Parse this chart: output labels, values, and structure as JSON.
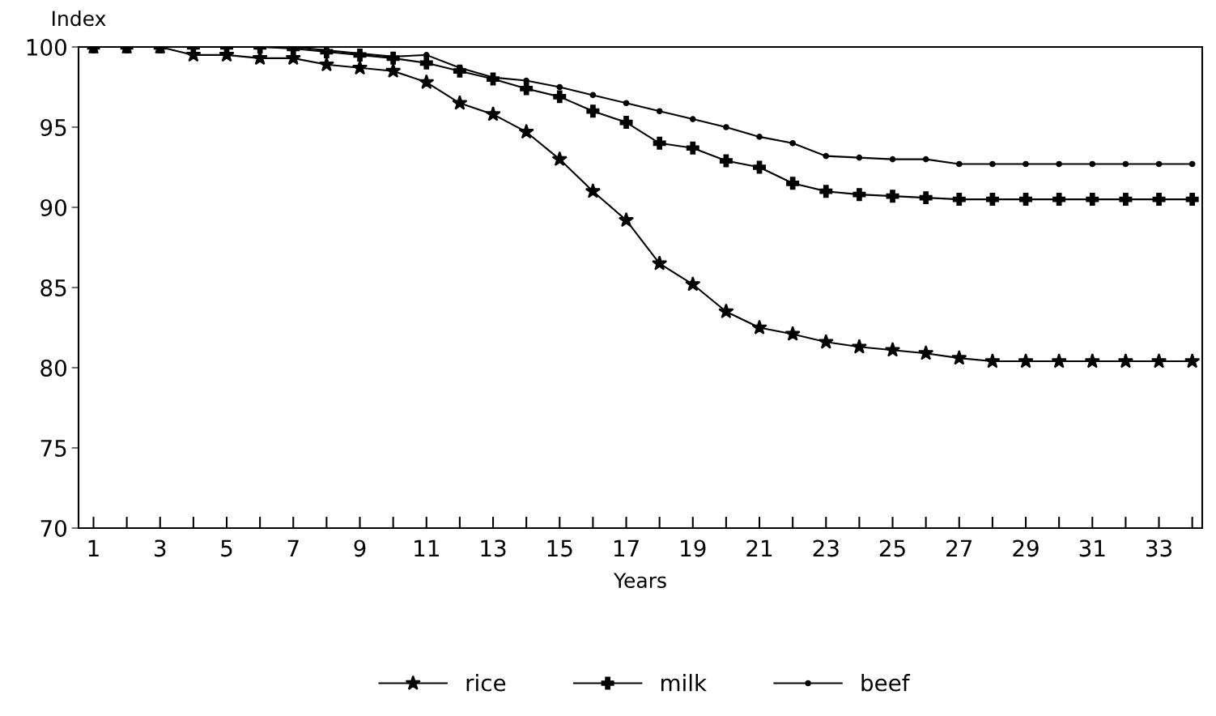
{
  "chart_data": {
    "type": "line",
    "ylabel": "Index",
    "xlabel": "Years",
    "x": [
      1,
      2,
      3,
      4,
      5,
      6,
      7,
      8,
      9,
      10,
      11,
      12,
      13,
      14,
      15,
      16,
      17,
      18,
      19,
      20,
      21,
      22,
      23,
      24,
      25,
      26,
      27,
      28,
      29,
      30,
      31,
      32,
      33,
      34
    ],
    "series": [
      {
        "name": "rice",
        "color": "#000000",
        "marker": "star",
        "values": [
          100,
          100,
          100,
          99.5,
          99.5,
          99.3,
          99.3,
          98.9,
          98.7,
          98.5,
          97.8,
          96.5,
          95.8,
          94.7,
          93,
          91,
          89.2,
          86.5,
          85.2,
          83.5,
          82.5,
          82.1,
          81.6,
          81.3,
          81.1,
          80.9,
          80.6,
          80.4,
          80.4,
          80.4,
          80.4,
          80.4,
          80.4,
          80.4
        ]
      },
      {
        "name": "milk",
        "color": "#000000",
        "marker": "cross",
        "values": [
          100,
          100,
          100,
          100,
          100,
          100,
          99.9,
          99.7,
          99.5,
          99.3,
          99,
          98.5,
          98,
          97.4,
          96.9,
          96,
          95.3,
          94,
          93.7,
          92.9,
          92.5,
          91.5,
          91,
          90.8,
          90.7,
          90.6,
          90.5,
          90.5,
          90.5,
          90.5,
          90.5,
          90.5,
          90.5,
          90.5
        ]
      },
      {
        "name": "beef",
        "color": "#000000",
        "marker": "circle",
        "values": [
          100,
          100,
          100,
          100,
          100,
          100,
          100,
          99.8,
          99.6,
          99.4,
          99.5,
          98.7,
          98.1,
          97.9,
          97.5,
          97,
          96.5,
          96,
          95.5,
          95,
          94.4,
          94,
          93.2,
          93.1,
          93,
          93,
          92.7,
          92.7,
          92.7,
          92.7,
          92.7,
          92.7,
          92.7,
          92.7
        ]
      }
    ],
    "xlim": [
      0.55,
      34.3
    ],
    "ylim": [
      70,
      100
    ],
    "yticks": [
      70,
      75,
      80,
      85,
      90,
      95,
      100
    ],
    "xticks": [
      1,
      {
        "value": 2,
        "label": null
      },
      3,
      {
        "value": 4,
        "label": null
      },
      5,
      {
        "value": 6,
        "label": null
      },
      7,
      {
        "value": 8,
        "label": null
      },
      9,
      {
        "value": 10,
        "label": null
      },
      11,
      {
        "value": 12,
        "label": null
      },
      13,
      {
        "value": 14,
        "label": null
      },
      15,
      {
        "value": 16,
        "label": null
      },
      17,
      {
        "value": 18,
        "label": null
      },
      19,
      {
        "value": 20,
        "label": null
      },
      21,
      {
        "value": 22,
        "label": null
      },
      23,
      {
        "value": 24,
        "label": null
      },
      25,
      {
        "value": 26,
        "label": null
      },
      27,
      {
        "value": 28,
        "label": null
      },
      29,
      {
        "value": 30,
        "label": null
      },
      31,
      {
        "value": 32,
        "label": null
      },
      33,
      {
        "value": 34,
        "label": null
      }
    ],
    "grid": false,
    "legend": "bottom",
    "line_style": "solid"
  }
}
